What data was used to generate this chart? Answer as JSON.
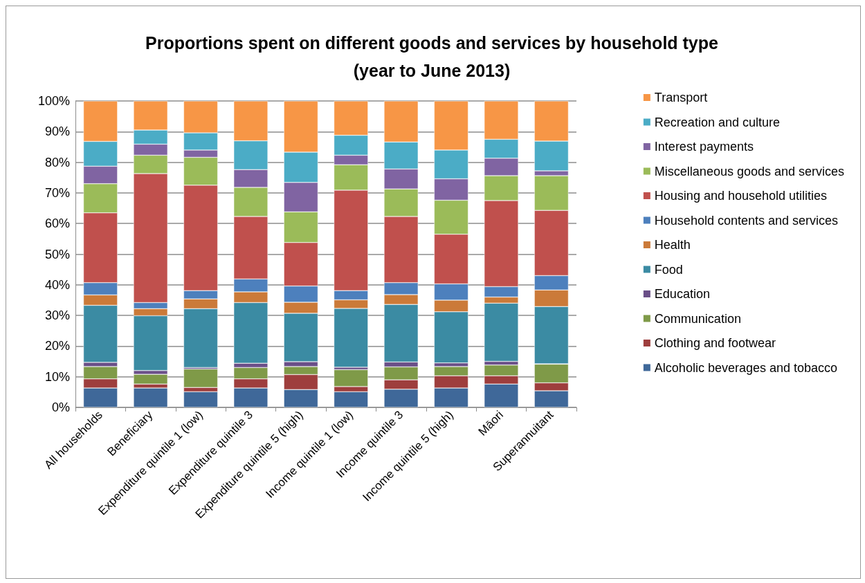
{
  "chart_data": {
    "type": "bar",
    "stacked": true,
    "title": "Proportions spent on different goods and services by household type\n(year to June 2013)",
    "categories": [
      "All households",
      "Beneficiary",
      "Expenditure quintile 1 (low)",
      "Expenditure quintile 3",
      "Expenditure quintile 5 (high)",
      "Income quintile 1 (low)",
      "Income quintile 3",
      "Income quintile 5 (high)",
      "Māori",
      "Superannuitant"
    ],
    "series": [
      {
        "name": "Alcoholic beverages and tobacco",
        "color": "#3f6899",
        "values": [
          6.3,
          6.3,
          5.1,
          6.3,
          5.8,
          5.1,
          5.9,
          6.3,
          7.6,
          5.4
        ]
      },
      {
        "name": "Clothing and footwear",
        "color": "#9e3e3d",
        "values": [
          3.0,
          1.3,
          1.4,
          3.0,
          4.9,
          1.7,
          3.1,
          4.0,
          2.7,
          2.6
        ]
      },
      {
        "name": "Communication",
        "color": "#7f9a48",
        "values": [
          4.0,
          3.2,
          6.0,
          3.7,
          2.6,
          5.5,
          4.2,
          3.0,
          3.5,
          6.1
        ]
      },
      {
        "name": "Education",
        "color": "#6a4f88",
        "values": [
          1.4,
          1.2,
          0.5,
          1.4,
          1.6,
          0.8,
          1.6,
          1.2,
          1.2,
          0.1
        ]
      },
      {
        "name": "Food",
        "color": "#3b8ba3",
        "values": [
          18.6,
          17.9,
          19.2,
          19.8,
          15.8,
          19.2,
          18.8,
          16.7,
          19.0,
          18.7
        ]
      },
      {
        "name": "Health",
        "color": "#cb7a39",
        "values": [
          3.4,
          2.3,
          3.2,
          3.5,
          3.6,
          2.8,
          3.2,
          3.8,
          2.0,
          5.4
        ]
      },
      {
        "name": "Household contents and services",
        "color": "#4d80bd",
        "values": [
          4.0,
          2.0,
          2.7,
          4.2,
          5.3,
          3.0,
          3.9,
          5.3,
          3.4,
          4.7
        ]
      },
      {
        "name": "Housing and household utilities",
        "color": "#c0504d",
        "values": [
          22.8,
          42.1,
          34.4,
          20.4,
          14.2,
          32.8,
          21.6,
          16.2,
          28.1,
          21.3
        ]
      },
      {
        "name": "Miscellaneous goods and services",
        "color": "#9bbb59",
        "values": [
          9.5,
          6.0,
          9.1,
          9.5,
          10.0,
          8.3,
          9.0,
          11.1,
          8.1,
          11.3
        ]
      },
      {
        "name": "Interest payments",
        "color": "#8064a2",
        "values": [
          5.7,
          3.6,
          2.4,
          5.8,
          9.6,
          3.1,
          6.5,
          7.0,
          5.7,
          1.6
        ]
      },
      {
        "name": "Recreation and culture",
        "color": "#4bacc6",
        "values": [
          8.1,
          4.6,
          5.6,
          9.4,
          9.9,
          6.5,
          8.8,
          9.4,
          6.2,
          9.7
        ]
      },
      {
        "name": "Transport",
        "color": "#f79646",
        "values": [
          13.2,
          9.5,
          10.4,
          13.0,
          16.7,
          11.2,
          13.4,
          16.0,
          12.5,
          13.1
        ]
      }
    ],
    "ylim": [
      0,
      100
    ],
    "yticks": [
      {
        "value": 0,
        "label": "0%"
      },
      {
        "value": 10,
        "label": "10%"
      },
      {
        "value": 20,
        "label": "20%"
      },
      {
        "value": 30,
        "label": "30%"
      },
      {
        "value": 40,
        "label": "40%"
      },
      {
        "value": 50,
        "label": "50%"
      },
      {
        "value": 60,
        "label": "60%"
      },
      {
        "value": 70,
        "label": "70%"
      },
      {
        "value": 80,
        "label": "80%"
      },
      {
        "value": 90,
        "label": "90%"
      },
      {
        "value": 100,
        "label": "100%"
      }
    ],
    "grid": "y",
    "legend": "right"
  }
}
